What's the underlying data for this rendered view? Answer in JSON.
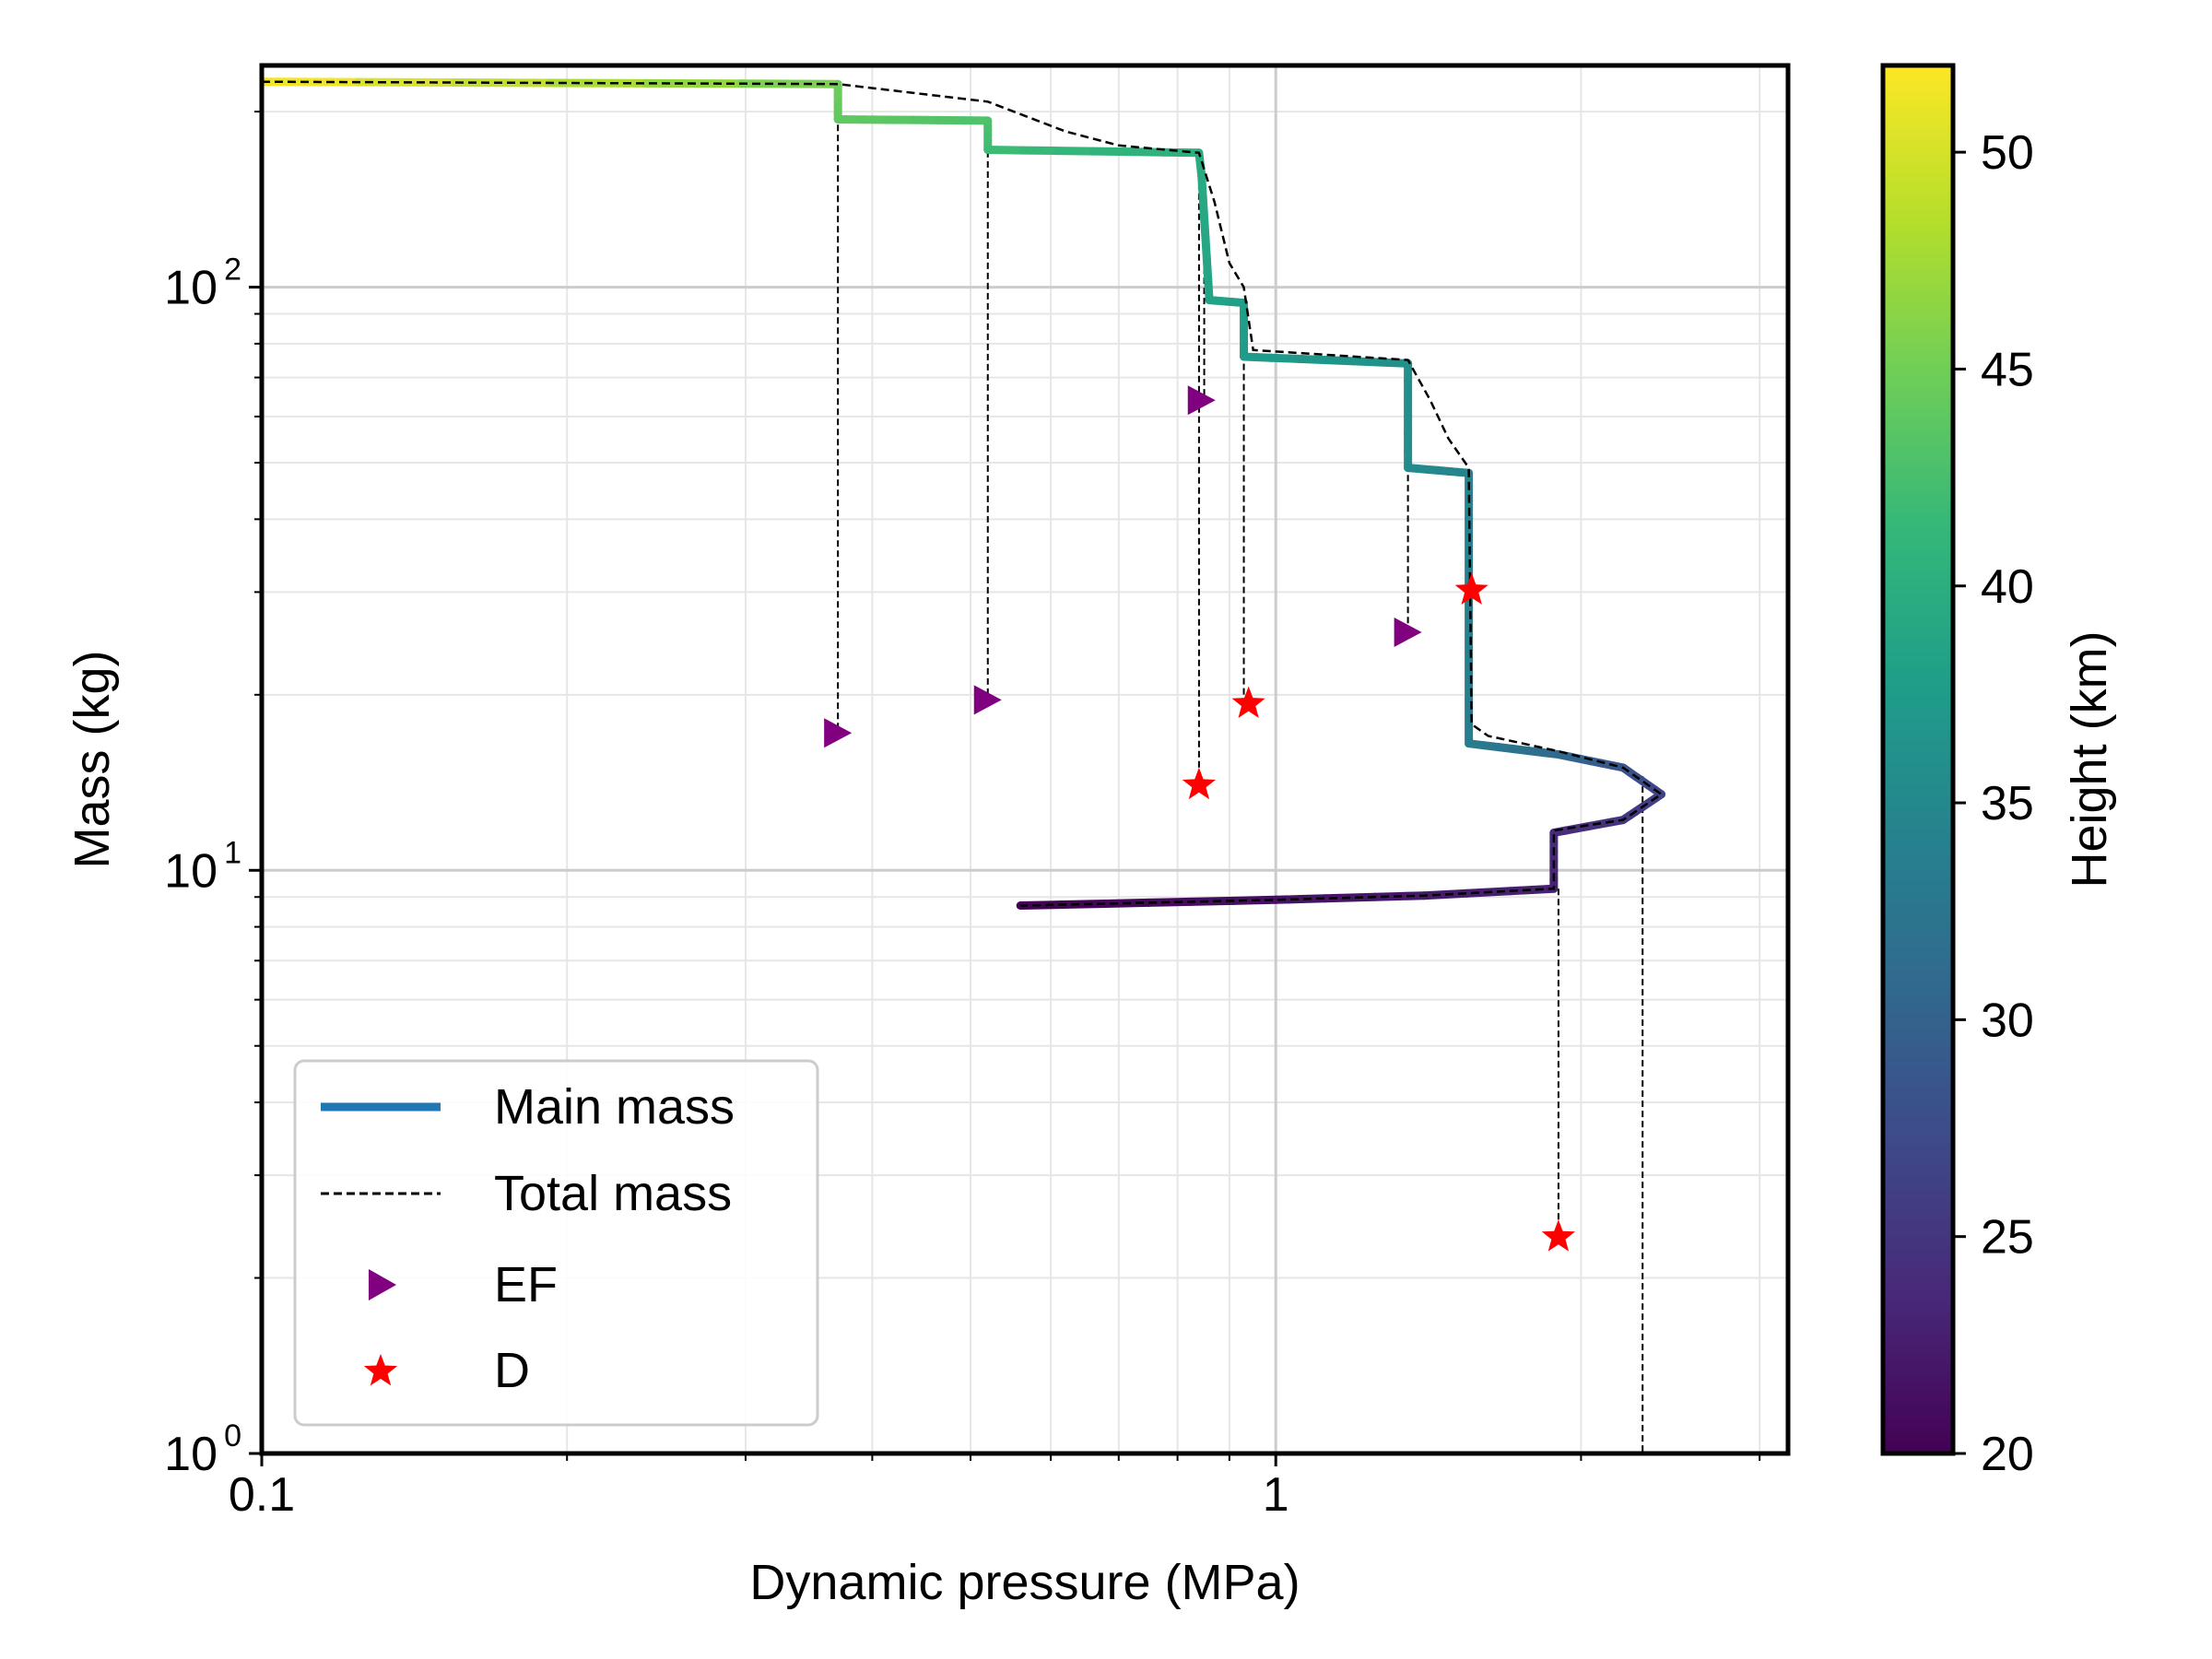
{
  "chart_data": {
    "type": "line",
    "xlabel": "Dynamic pressure (MPa)",
    "ylabel": "Mass (kg)",
    "xscale": "log",
    "yscale": "log",
    "xlim": [
      0.1,
      3.2
    ],
    "ylim": [
      1,
      240
    ],
    "grid": true,
    "x_ticks": [
      {
        "value": 0.1,
        "label": "0.1"
      },
      {
        "value": 1,
        "label": "1"
      }
    ],
    "y_ticks": [
      {
        "value": 1,
        "base": "10",
        "exp": "0"
      },
      {
        "value": 10,
        "base": "10",
        "exp": "1"
      },
      {
        "value": 100,
        "base": "10",
        "exp": "2"
      }
    ],
    "colorbar": {
      "label": "Height (km)",
      "range": [
        20,
        52
      ],
      "ticks": [
        "20",
        "25",
        "30",
        "35",
        "40",
        "45",
        "50"
      ],
      "colormap": [
        "#440154",
        "#482878",
        "#3e4989",
        "#31688e",
        "#26828e",
        "#1f9e89",
        "#35b779",
        "#6ece58",
        "#b5de2b",
        "#fde725"
      ]
    },
    "legend": {
      "position": "lower-left",
      "entries": [
        {
          "label": "Main mass",
          "style": "line",
          "color": "#1f77b4"
        },
        {
          "label": "Total mass",
          "style": "dashed",
          "color": "#000000"
        },
        {
          "label": "EF",
          "style": "triangle",
          "color": "#800080"
        },
        {
          "label": "D",
          "style": "star",
          "color": "#ff0000"
        }
      ]
    },
    "series": [
      {
        "name": "Main mass",
        "color_by": "Height (km)",
        "points": [
          {
            "x": 0.1,
            "y": 225,
            "h": 52
          },
          {
            "x": 0.37,
            "y": 223,
            "h": 45
          },
          {
            "x": 0.37,
            "y": 194,
            "h": 44
          },
          {
            "x": 0.52,
            "y": 193,
            "h": 43
          },
          {
            "x": 0.52,
            "y": 172,
            "h": 42
          },
          {
            "x": 0.84,
            "y": 170,
            "h": 40
          },
          {
            "x": 0.845,
            "y": 155,
            "h": 39.5
          },
          {
            "x": 0.86,
            "y": 95,
            "h": 38.5
          },
          {
            "x": 0.93,
            "y": 94,
            "h": 38
          },
          {
            "x": 0.93,
            "y": 76,
            "h": 37.5
          },
          {
            "x": 1.35,
            "y": 74,
            "h": 36
          },
          {
            "x": 1.35,
            "y": 49,
            "h": 35.5
          },
          {
            "x": 1.55,
            "y": 48,
            "h": 34.5
          },
          {
            "x": 1.55,
            "y": 16.5,
            "h": 33.5
          },
          {
            "x": 1.9,
            "y": 15.8,
            "h": 31
          },
          {
            "x": 2.2,
            "y": 15,
            "h": 28.5
          },
          {
            "x": 2.4,
            "y": 13.5,
            "h": 26.5
          },
          {
            "x": 2.2,
            "y": 12.2,
            "h": 25
          },
          {
            "x": 1.88,
            "y": 11.6,
            "h": 24
          },
          {
            "x": 1.88,
            "y": 9.3,
            "h": 23
          },
          {
            "x": 1.4,
            "y": 9.05,
            "h": 22.3
          },
          {
            "x": 1.0,
            "y": 8.9,
            "h": 21.5
          },
          {
            "x": 0.56,
            "y": 8.7,
            "h": 20
          }
        ]
      },
      {
        "name": "Total mass",
        "points": [
          {
            "x": 0.1,
            "y": 225
          },
          {
            "x": 0.37,
            "y": 223
          },
          {
            "x": 0.52,
            "y": 208
          },
          {
            "x": 0.62,
            "y": 185
          },
          {
            "x": 0.7,
            "y": 175
          },
          {
            "x": 0.84,
            "y": 170
          },
          {
            "x": 0.87,
            "y": 140
          },
          {
            "x": 0.9,
            "y": 110
          },
          {
            "x": 0.93,
            "y": 100
          },
          {
            "x": 0.95,
            "y": 78
          },
          {
            "x": 1.35,
            "y": 75
          },
          {
            "x": 1.42,
            "y": 64
          },
          {
            "x": 1.48,
            "y": 55
          },
          {
            "x": 1.55,
            "y": 49
          },
          {
            "x": 1.56,
            "y": 17.8
          },
          {
            "x": 1.62,
            "y": 17
          },
          {
            "x": 1.9,
            "y": 16
          },
          {
            "x": 2.2,
            "y": 15
          },
          {
            "x": 2.4,
            "y": 13.5
          },
          {
            "x": 2.2,
            "y": 12.2
          },
          {
            "x": 1.88,
            "y": 11.7
          },
          {
            "x": 1.88,
            "y": 9.3
          },
          {
            "x": 1.4,
            "y": 9.05
          },
          {
            "x": 1.0,
            "y": 8.9
          },
          {
            "x": 0.56,
            "y": 8.7
          }
        ]
      }
    ],
    "ef_markers": [
      {
        "x": 0.37,
        "y": 17.2
      },
      {
        "x": 0.52,
        "y": 19.6
      },
      {
        "x": 0.845,
        "y": 64
      },
      {
        "x": 1.35,
        "y": 25.6
      }
    ],
    "d_markers": [
      {
        "x": 0.84,
        "y": 14
      },
      {
        "x": 0.94,
        "y": 19.3
      },
      {
        "x": 1.56,
        "y": 30.2
      },
      {
        "x": 1.9,
        "y": 2.35
      }
    ],
    "drop_lines": [
      {
        "x": 0.37,
        "y_top": 223,
        "y_bottom": 17.2
      },
      {
        "x": 0.52,
        "y_top": 193,
        "y_bottom": 19.6
      },
      {
        "x": 0.84,
        "y_top": 170,
        "y_bottom": 14
      },
      {
        "x": 0.85,
        "y_top": 155,
        "y_bottom": 64
      },
      {
        "x": 0.93,
        "y_top": 94,
        "y_bottom": 19.3
      },
      {
        "x": 1.35,
        "y_top": 74,
        "y_bottom": 25.6
      },
      {
        "x": 1.55,
        "y_top": 48,
        "y_bottom": 30.2
      },
      {
        "x": 1.9,
        "y_top": 9.3,
        "y_bottom": 2.35
      },
      {
        "x": 2.3,
        "y_top": 14.5,
        "y_bottom": 1
      }
    ]
  }
}
